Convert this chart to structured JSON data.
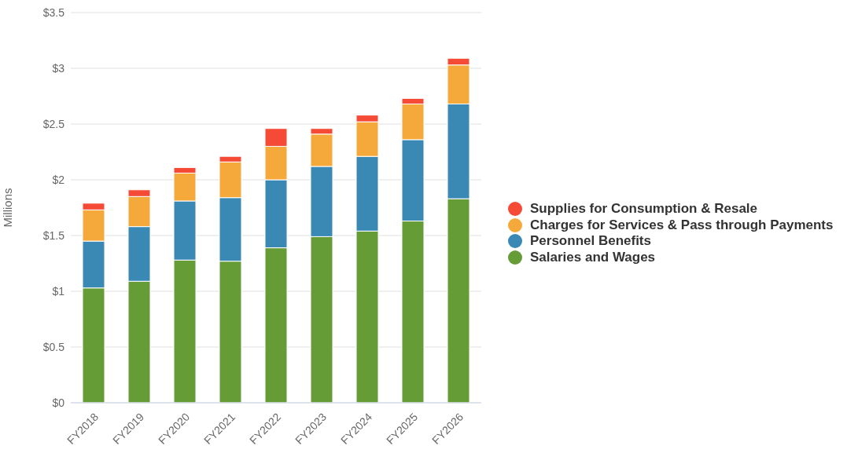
{
  "chart_data": {
    "type": "bar",
    "stacked": true,
    "ylabel": "Millions",
    "categories": [
      "FY2018",
      "FY2019",
      "FY2020",
      "FY2021",
      "FY2022",
      "FY2023",
      "FY2024",
      "FY2025",
      "FY2026"
    ],
    "series": [
      {
        "name": "Salaries and Wages",
        "color": "#669c35",
        "values": [
          1.03,
          1.09,
          1.28,
          1.27,
          1.39,
          1.49,
          1.54,
          1.63,
          1.83
        ]
      },
      {
        "name": "Personnel Benefits",
        "color": "#3a89b5",
        "values": [
          0.42,
          0.49,
          0.53,
          0.57,
          0.61,
          0.63,
          0.67,
          0.73,
          0.85
        ]
      },
      {
        "name": "Charges for Services & Pass through Payments",
        "color": "#f6a93b",
        "values": [
          0.28,
          0.27,
          0.25,
          0.32,
          0.3,
          0.29,
          0.31,
          0.32,
          0.35
        ]
      },
      {
        "name": "Supplies for Consumption & Resale",
        "color": "#f44a36",
        "values": [
          0.06,
          0.06,
          0.05,
          0.05,
          0.16,
          0.05,
          0.06,
          0.05,
          0.06
        ]
      }
    ],
    "ylim": [
      0,
      3.5
    ],
    "yticks": [
      {
        "value": 0,
        "label": "$0"
      },
      {
        "value": 0.5,
        "label": "$0.5"
      },
      {
        "value": 1,
        "label": "$1"
      },
      {
        "value": 1.5,
        "label": "$1.5"
      },
      {
        "value": 2,
        "label": "$2"
      },
      {
        "value": 2.5,
        "label": "$2.5"
      },
      {
        "value": 3,
        "label": "$3"
      },
      {
        "value": 3.5,
        "label": "$3.5"
      }
    ],
    "grid": "y",
    "legend": "right"
  }
}
